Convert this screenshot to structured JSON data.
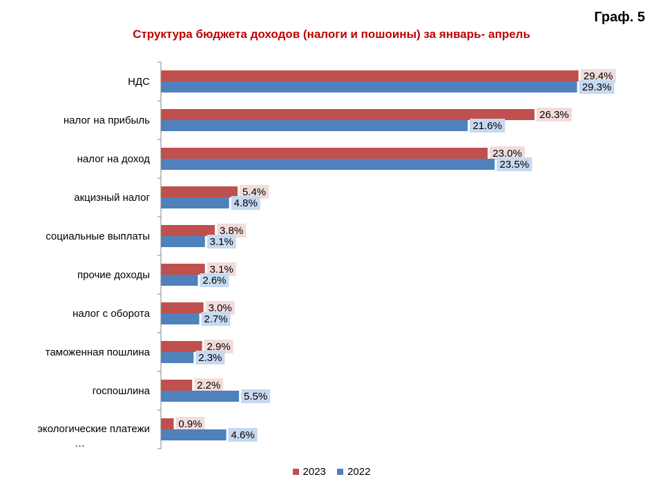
{
  "graf_label": "Граф. 5",
  "chart_data": {
    "type": "bar",
    "orientation": "horizontal",
    "title": "Структура бюджета доходов (налоги и пошоины) за январь- апрель",
    "categories": [
      "НДС",
      "налог на прибыль",
      "налог  на доход",
      "акцизный налог",
      "социальные выплаты",
      "прочие  доходы",
      "налог с оборота",
      "таможенная пошлина",
      "госпошлина",
      "экологические платежи …"
    ],
    "series": [
      {
        "name": "2023",
        "color": "#c0504d",
        "label_bg": "#f2dcdb",
        "values": [
          29.4,
          26.3,
          23.0,
          5.4,
          3.8,
          3.1,
          3.0,
          2.9,
          2.2,
          0.9
        ],
        "labels": [
          "29.4%",
          "26.3%",
          "23.0%",
          "5.4%",
          "3.8%",
          "3.1%",
          "3.0%",
          "2.9%",
          "2.2%",
          "0.9%"
        ]
      },
      {
        "name": "2022",
        "color": "#4f81bd",
        "label_bg": "#c6d9f1",
        "values": [
          29.3,
          21.6,
          23.5,
          4.8,
          3.1,
          2.6,
          2.7,
          2.3,
          5.5,
          4.6
        ],
        "labels": [
          "29.3%",
          "21.6%",
          "23.5%",
          "4.8%",
          "3.1%",
          "2.6%",
          "2.7%",
          "2.3%",
          "5.5%",
          "4.6%"
        ]
      }
    ],
    "xlim": [
      0,
      30
    ],
    "grid": false,
    "legend": "bottom"
  }
}
